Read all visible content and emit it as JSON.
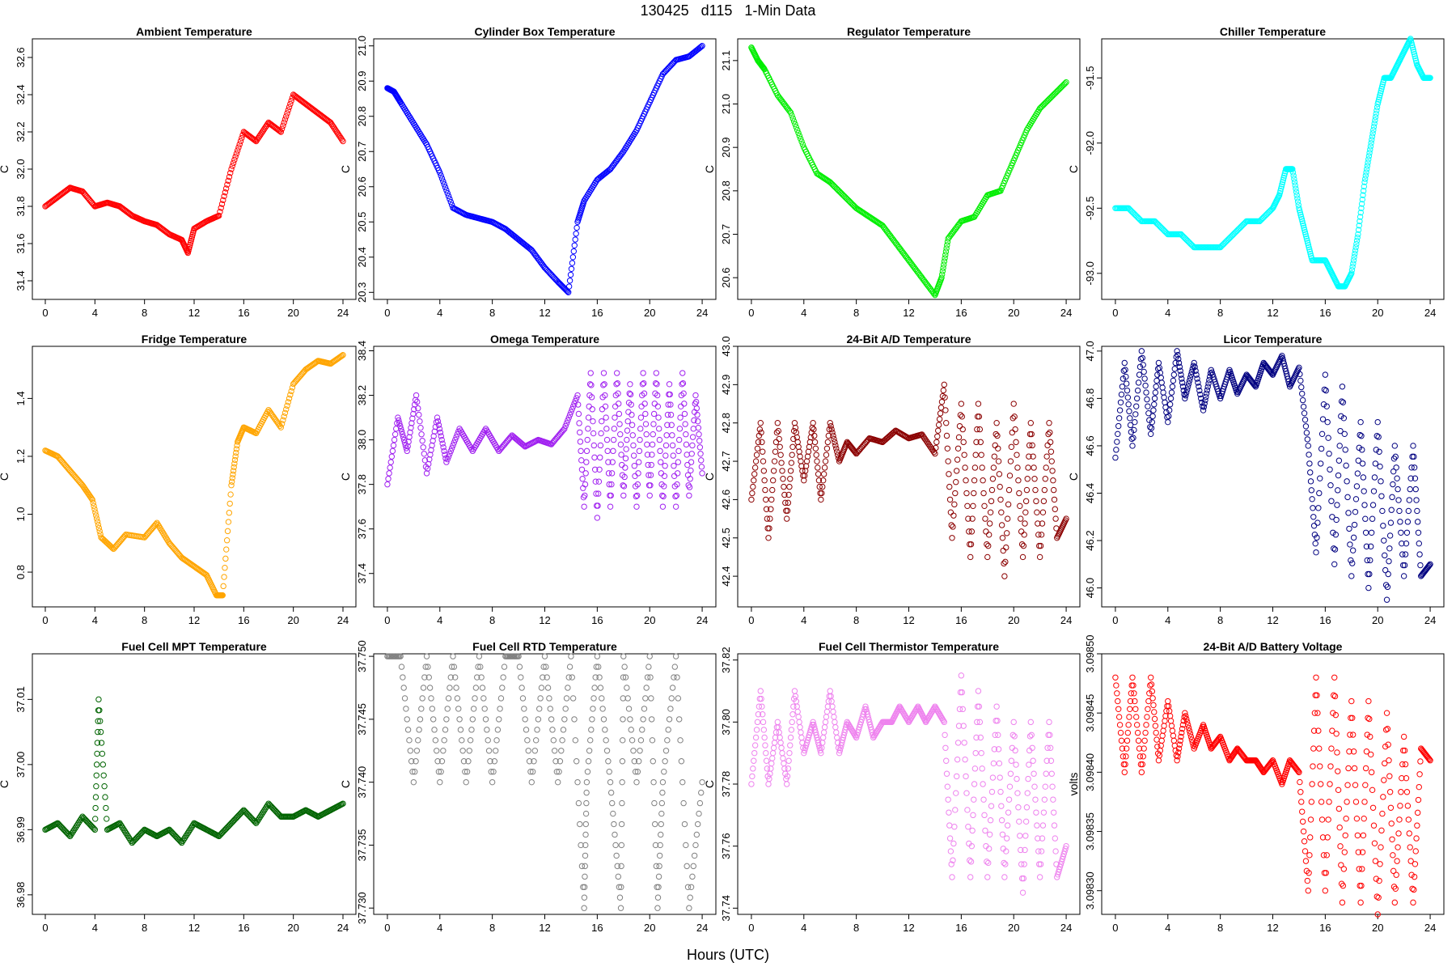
{
  "page": {
    "title": "130425   d115   1-Min Data",
    "x_caption": "Hours (UTC)"
  },
  "chart_data": [
    {
      "type": "scatter",
      "title": "Ambient Temperature",
      "ylabel": "C",
      "color": "#ff0000",
      "xlim": [
        0,
        24
      ],
      "ylim": [
        31.3,
        32.7
      ],
      "xticks": [
        "0",
        "4",
        "8",
        "12",
        "16",
        "20",
        "24"
      ],
      "yticks": [
        "31.4",
        "31.6",
        "31.8",
        "32.0",
        "32.2",
        "32.4",
        "32.6"
      ],
      "x": [
        0,
        1,
        2,
        3,
        4,
        5,
        6,
        7,
        8,
        9,
        10,
        11,
        11.5,
        12,
        13,
        14,
        15,
        16,
        17,
        18,
        19,
        20,
        21,
        22,
        23,
        24
      ],
      "y": [
        31.8,
        31.85,
        31.9,
        31.88,
        31.8,
        31.82,
        31.8,
        31.75,
        31.72,
        31.7,
        31.65,
        31.62,
        31.55,
        31.68,
        31.72,
        31.75,
        32.0,
        32.2,
        32.15,
        32.25,
        32.2,
        32.4,
        32.35,
        32.3,
        32.25,
        32.15
      ]
    },
    {
      "type": "scatter",
      "title": "Cylinder Box Temperature",
      "ylabel": "C",
      "color": "#0000ff",
      "xlim": [
        0,
        24
      ],
      "ylim": [
        20.28,
        21.02
      ],
      "xticks": [
        "0",
        "4",
        "8",
        "12",
        "16",
        "20",
        "24"
      ],
      "yticks": [
        "20.3",
        "20.4",
        "20.5",
        "20.6",
        "20.7",
        "20.8",
        "20.9",
        "21.0"
      ],
      "x": [
        0,
        0.5,
        1,
        2,
        3,
        4,
        5,
        6,
        7,
        8,
        9,
        10,
        11,
        12,
        13,
        13.8,
        14.5,
        15,
        16,
        17,
        18,
        19,
        20,
        21,
        22,
        23,
        24
      ],
      "y": [
        20.88,
        20.87,
        20.84,
        20.78,
        20.72,
        20.64,
        20.54,
        20.52,
        20.51,
        20.5,
        20.48,
        20.45,
        20.42,
        20.37,
        20.33,
        20.3,
        20.5,
        20.56,
        20.62,
        20.65,
        20.7,
        20.76,
        20.84,
        20.92,
        20.96,
        20.97,
        21.0
      ]
    },
    {
      "type": "scatter",
      "title": "Regulator Temperature",
      "ylabel": "C",
      "color": "#00ee00",
      "xlim": [
        0,
        24
      ],
      "ylim": [
        20.55,
        21.15
      ],
      "xticks": [
        "0",
        "4",
        "8",
        "12",
        "16",
        "20",
        "24"
      ],
      "yticks": [
        "20.6",
        "20.7",
        "20.8",
        "20.9",
        "21.0",
        "21.1"
      ],
      "x": [
        0,
        0.5,
        1,
        2,
        3,
        4,
        5,
        6,
        7,
        8,
        9,
        10,
        11,
        12,
        13,
        14,
        14.5,
        15,
        16,
        17,
        18,
        19,
        20,
        21,
        22,
        23,
        24
      ],
      "y": [
        21.13,
        21.1,
        21.08,
        21.02,
        20.98,
        20.9,
        20.84,
        20.82,
        20.79,
        20.76,
        20.74,
        20.72,
        20.68,
        20.64,
        20.6,
        20.56,
        20.6,
        20.69,
        20.73,
        20.74,
        20.79,
        20.8,
        20.87,
        20.94,
        20.99,
        21.02,
        21.05
      ]
    },
    {
      "type": "scatter",
      "title": "Chiller Temperature",
      "ylabel": "C",
      "color": "#00ffff",
      "xlim": [
        0,
        24
      ],
      "ylim": [
        -93.2,
        -91.2
      ],
      "xticks": [
        "0",
        "4",
        "8",
        "12",
        "16",
        "20",
        "24"
      ],
      "yticks": [
        "-93.0",
        "-92.5",
        "-92.0",
        "-91.5"
      ],
      "x": [
        0,
        1,
        2,
        3,
        4,
        5,
        6,
        7,
        8,
        9,
        10,
        11,
        12,
        12.5,
        13,
        13.5,
        14,
        14.5,
        15,
        16,
        16.5,
        17,
        17.5,
        18,
        18.5,
        19,
        19.5,
        20,
        20.5,
        21,
        21.5,
        22,
        22.5,
        23,
        23.5,
        24
      ],
      "y": [
        -92.5,
        -92.5,
        -92.6,
        -92.6,
        -92.7,
        -92.7,
        -92.8,
        -92.8,
        -92.8,
        -92.7,
        -92.6,
        -92.6,
        -92.5,
        -92.4,
        -92.2,
        -92.2,
        -92.5,
        -92.7,
        -92.9,
        -92.9,
        -93.0,
        -93.1,
        -93.1,
        -93.0,
        -92.7,
        -92.3,
        -92.0,
        -91.7,
        -91.5,
        -91.5,
        -91.4,
        -91.3,
        -91.2,
        -91.4,
        -91.5,
        -91.5
      ]
    },
    {
      "type": "scatter",
      "title": "Fridge Temperature",
      "ylabel": "C",
      "color": "#ffa500",
      "xlim": [
        0,
        24
      ],
      "ylim": [
        0.68,
        1.58
      ],
      "xticks": [
        "0",
        "4",
        "8",
        "12",
        "16",
        "20",
        "24"
      ],
      "yticks": [
        "0.8",
        "1.0",
        "1.2",
        "1.4"
      ],
      "x": [
        0,
        1,
        2,
        3,
        3.8,
        4.5,
        5.5,
        6.5,
        8,
        9,
        10,
        11,
        12,
        13,
        13.8,
        14.3,
        15,
        15.5,
        16,
        17,
        18,
        19,
        20,
        21,
        22,
        23,
        24
      ],
      "y": [
        1.22,
        1.2,
        1.15,
        1.1,
        1.05,
        0.92,
        0.88,
        0.93,
        0.92,
        0.97,
        0.9,
        0.85,
        0.82,
        0.79,
        0.72,
        0.72,
        1.1,
        1.25,
        1.3,
        1.28,
        1.36,
        1.3,
        1.45,
        1.5,
        1.53,
        1.52,
        1.55
      ]
    },
    {
      "type": "scatter",
      "title": "Omega Temperature",
      "ylabel": "C",
      "color": "#a020f0",
      "xlim": [
        0,
        24
      ],
      "ylim": [
        37.25,
        38.42
      ],
      "xticks": [
        "0",
        "4",
        "8",
        "12",
        "16",
        "20",
        "24"
      ],
      "yticks": [
        "37.4",
        "37.6",
        "37.8",
        "38.0",
        "38.2",
        "38.4"
      ],
      "x": [
        0,
        0.8,
        1.5,
        2.2,
        3,
        3.8,
        4.5,
        5.5,
        6.5,
        7.5,
        8.5,
        9.5,
        10.5,
        11.5,
        12.5,
        13.5,
        14.5,
        15,
        15.5,
        16,
        16.5,
        17,
        17.5,
        18,
        18.5,
        19,
        19.5,
        20,
        20.5,
        21,
        21.5,
        22,
        22.5,
        23,
        23.5,
        24
      ],
      "y": [
        37.8,
        38.1,
        37.95,
        38.2,
        37.85,
        38.1,
        37.9,
        38.05,
        37.95,
        38.05,
        37.95,
        38.02,
        37.97,
        38.0,
        37.98,
        38.05,
        38.2,
        37.7,
        38.3,
        37.65,
        38.3,
        37.7,
        38.3,
        37.75,
        38.25,
        37.7,
        38.3,
        37.75,
        38.3,
        37.7,
        38.25,
        37.7,
        38.3,
        37.75,
        38.2,
        37.85
      ]
    },
    {
      "type": "scatter",
      "title": "24-Bit A/D Temperature",
      "ylabel": "C",
      "color": "#8b0000",
      "xlim": [
        0,
        24
      ],
      "ylim": [
        42.32,
        43.0
      ],
      "xticks": [
        "0",
        "4",
        "8",
        "12",
        "16",
        "20",
        "24"
      ],
      "yticks": [
        "42.4",
        "42.5",
        "42.6",
        "42.7",
        "42.8",
        "42.9",
        "43.0"
      ],
      "x": [
        0,
        0.7,
        1.3,
        2,
        2.7,
        3.3,
        4,
        4.7,
        5.3,
        6,
        6.7,
        7.3,
        8,
        9,
        10,
        11,
        12,
        13,
        14,
        14.7,
        15.3,
        16,
        16.7,
        17.3,
        18,
        18.7,
        19.3,
        20,
        20.7,
        21.3,
        22,
        22.7,
        23.3,
        24
      ],
      "y": [
        42.6,
        42.8,
        42.5,
        42.8,
        42.55,
        42.8,
        42.65,
        42.8,
        42.6,
        42.8,
        42.7,
        42.75,
        42.72,
        42.76,
        42.75,
        42.78,
        42.76,
        42.77,
        42.72,
        42.9,
        42.5,
        42.85,
        42.45,
        42.85,
        42.45,
        42.8,
        42.4,
        42.85,
        42.45,
        42.8,
        42.45,
        42.8,
        42.5,
        42.55
      ]
    },
    {
      "type": "scatter",
      "title": "Licor Temperature",
      "ylabel": "C",
      "color": "#000080",
      "xlim": [
        0,
        24
      ],
      "ylim": [
        45.92,
        47.02
      ],
      "xticks": [
        "0",
        "4",
        "8",
        "12",
        "16",
        "20",
        "24"
      ],
      "yticks": [
        "46.0",
        "46.2",
        "46.4",
        "46.6",
        "46.8",
        "47.0"
      ],
      "x": [
        0,
        0.7,
        1.3,
        2,
        2.7,
        3.3,
        4,
        4.7,
        5.3,
        6,
        6.7,
        7.3,
        8,
        8.7,
        9.3,
        10,
        10.7,
        11.3,
        12,
        12.7,
        13.3,
        14,
        14.7,
        15.3,
        16,
        16.7,
        17.3,
        18,
        18.7,
        19.3,
        20,
        20.7,
        21.3,
        22,
        22.7,
        23.3,
        24
      ],
      "y": [
        46.55,
        46.95,
        46.6,
        47.0,
        46.65,
        46.95,
        46.7,
        47.0,
        46.8,
        46.95,
        46.75,
        46.92,
        46.8,
        46.92,
        46.82,
        46.9,
        46.85,
        46.95,
        46.9,
        46.98,
        46.85,
        46.93,
        46.6,
        46.15,
        46.9,
        46.1,
        46.85,
        46.05,
        46.7,
        46.0,
        46.7,
        45.95,
        46.6,
        46.05,
        46.6,
        46.05,
        46.1
      ]
    },
    {
      "type": "scatter",
      "title": "Fuel Cell MPT Temperature",
      "ylabel": "C",
      "color": "#006400",
      "xlim": [
        0,
        24
      ],
      "ylim": [
        36.977,
        37.017
      ],
      "xticks": [
        "0",
        "4",
        "8",
        "12",
        "16",
        "20",
        "24"
      ],
      "yticks": [
        "36.98",
        "36.99",
        "37.00",
        "37.01"
      ],
      "x": [
        0,
        1,
        2,
        3,
        4,
        4.3,
        5,
        6,
        7,
        8,
        9,
        10,
        11,
        12,
        13,
        14,
        15,
        16,
        17,
        18,
        19,
        20,
        21,
        22,
        23,
        24
      ],
      "y": [
        36.99,
        36.991,
        36.989,
        36.992,
        36.99,
        37.01,
        36.99,
        36.991,
        36.988,
        36.99,
        36.989,
        36.99,
        36.988,
        36.991,
        36.99,
        36.989,
        36.991,
        36.993,
        36.991,
        36.994,
        36.992,
        36.992,
        36.993,
        36.992,
        36.993,
        36.994
      ]
    },
    {
      "type": "scatter",
      "title": "Fuel Cell RTD Temperature",
      "ylabel": "C",
      "color": "#808080",
      "xlim": [
        0,
        24
      ],
      "ylim": [
        37.7295,
        37.7502
      ],
      "xticks": [
        "0",
        "4",
        "8",
        "12",
        "16",
        "20",
        "24"
      ],
      "yticks": [
        "37.730",
        "37.735",
        "37.740",
        "37.745",
        "37.750"
      ],
      "x": [
        0,
        1,
        2,
        3,
        4,
        5,
        6,
        7,
        8,
        9,
        10,
        11,
        12,
        13,
        14,
        15,
        15.2,
        16,
        17,
        17.8,
        18,
        19,
        20,
        20.6,
        21,
        22,
        23,
        24
      ],
      "y": [
        37.75,
        37.75,
        37.74,
        37.75,
        37.74,
        37.75,
        37.74,
        37.75,
        37.74,
        37.75,
        37.75,
        37.74,
        37.75,
        37.74,
        37.75,
        37.73,
        37.74,
        37.75,
        37.74,
        37.73,
        37.75,
        37.74,
        37.75,
        37.73,
        37.74,
        37.75,
        37.73,
        37.74
      ]
    },
    {
      "type": "scatter",
      "title": "Fuel Cell Thermistor Temperature",
      "ylabel": "C",
      "color": "#ee82ee",
      "xlim": [
        0,
        24
      ],
      "ylim": [
        37.738,
        37.822
      ],
      "xticks": [
        "0",
        "4",
        "8",
        "12",
        "16",
        "20",
        "24"
      ],
      "yticks": [
        "37.74",
        "37.76",
        "37.78",
        "37.80",
        "37.82"
      ],
      "x": [
        0,
        0.7,
        1.3,
        2,
        2.7,
        3.3,
        4,
        4.7,
        5.3,
        6,
        6.7,
        7.3,
        8,
        8.7,
        9.3,
        10,
        10.7,
        11.3,
        12,
        12.7,
        13.3,
        14,
        14.7,
        15.3,
        16,
        16.7,
        17.3,
        18,
        18.7,
        19.3,
        20,
        20.7,
        21.3,
        22,
        22.7,
        23.3,
        24
      ],
      "y": [
        37.78,
        37.81,
        37.78,
        37.8,
        37.78,
        37.81,
        37.79,
        37.8,
        37.79,
        37.81,
        37.79,
        37.8,
        37.795,
        37.805,
        37.795,
        37.8,
        37.8,
        37.805,
        37.8,
        37.805,
        37.8,
        37.805,
        37.8,
        37.75,
        37.815,
        37.75,
        37.81,
        37.75,
        37.805,
        37.75,
        37.8,
        37.745,
        37.8,
        37.75,
        37.8,
        37.75,
        37.76
      ]
    },
    {
      "type": "scatter",
      "title": "24-Bit A/D Battery Voltage",
      "ylabel": "volts",
      "color": "#ff0000",
      "xlim": [
        0,
        24
      ],
      "ylim": [
        3.09828,
        3.0985
      ],
      "xticks": [
        "0",
        "4",
        "8",
        "12",
        "16",
        "20",
        "24"
      ],
      "yticks": [
        "3.09830",
        "3.09835",
        "3.09840",
        "3.09845",
        "3.09850"
      ],
      "x": [
        0,
        0.7,
        1.3,
        2,
        2.7,
        3.3,
        4,
        4.7,
        5.3,
        6,
        6.7,
        7.3,
        8,
        8.7,
        9.3,
        10,
        10.7,
        11.3,
        12,
        12.7,
        13.3,
        14,
        14.7,
        15.3,
        16,
        16.7,
        17.3,
        18,
        18.7,
        19.3,
        20,
        20.7,
        21.3,
        22,
        22.7,
        23.3,
        24
      ],
      "y": [
        3.09848,
        3.0984,
        3.09848,
        3.0984,
        3.09848,
        3.09841,
        3.09846,
        3.09841,
        3.09845,
        3.09842,
        3.09844,
        3.09842,
        3.09843,
        3.09841,
        3.09842,
        3.09841,
        3.09841,
        3.0984,
        3.09841,
        3.09839,
        3.09841,
        3.0984,
        3.0983,
        3.09848,
        3.0983,
        3.09848,
        3.09829,
        3.09846,
        3.09829,
        3.09846,
        3.09828,
        3.09845,
        3.09829,
        3.09843,
        3.09829,
        3.09842,
        3.09841
      ]
    }
  ]
}
